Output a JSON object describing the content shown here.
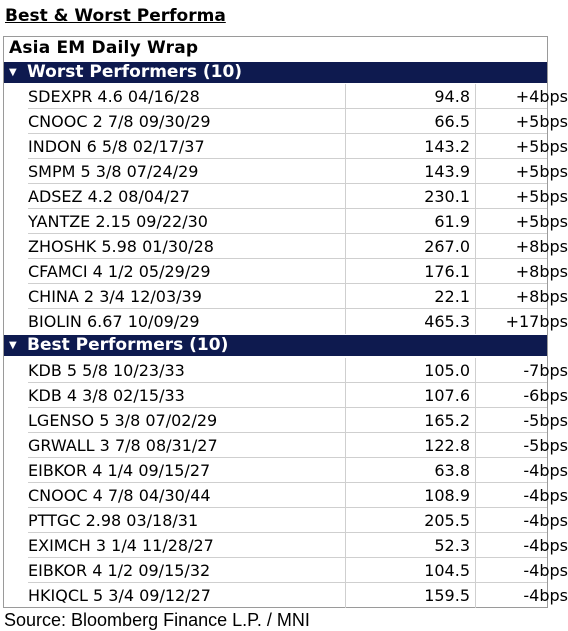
{
  "title": "Best & Worst Performa",
  "wrap_title": "Asia EM Daily Wrap",
  "worst": {
    "header": "Worst Performers (10)",
    "rows": [
      {
        "name": "SDEXPR 4.6 04/16/28",
        "price": "94.8",
        "change": "+4bps"
      },
      {
        "name": "CNOOC 2 7/8 09/30/29",
        "price": "66.5",
        "change": "+5bps"
      },
      {
        "name": "INDON 6 5/8 02/17/37",
        "price": "143.2",
        "change": "+5bps"
      },
      {
        "name": "SMPM 5 3/8 07/24/29",
        "price": "143.9",
        "change": "+5bps"
      },
      {
        "name": "ADSEZ 4.2 08/04/27",
        "price": "230.1",
        "change": "+5bps"
      },
      {
        "name": "YANTZE 2.15 09/22/30",
        "price": "61.9",
        "change": "+5bps"
      },
      {
        "name": "ZHOSHK 5.98 01/30/28",
        "price": "267.0",
        "change": "+8bps"
      },
      {
        "name": "CFAMCI 4 1/2 05/29/29",
        "price": "176.1",
        "change": "+8bps"
      },
      {
        "name": "CHINA 2 3/4 12/03/39",
        "price": "22.1",
        "change": "+8bps"
      },
      {
        "name": "BIOLIN 6.67 10/09/29",
        "price": "465.3",
        "change": "+17bps"
      }
    ]
  },
  "best": {
    "header": "Best Performers (10)",
    "rows": [
      {
        "name": "KDB 5 5/8 10/23/33",
        "price": "105.0",
        "change": "-7bps"
      },
      {
        "name": "KDB 4 3/8 02/15/33",
        "price": "107.6",
        "change": "-6bps"
      },
      {
        "name": "LGENSO 5 3/8 07/02/29",
        "price": "165.2",
        "change": "-5bps"
      },
      {
        "name": "GRWALL 3 7/8 08/31/27",
        "price": "122.8",
        "change": "-5bps"
      },
      {
        "name": "EIBKOR 4 1/4 09/15/27",
        "price": "63.8",
        "change": "-4bps"
      },
      {
        "name": "CNOOC 4 7/8 04/30/44",
        "price": "108.9",
        "change": "-4bps"
      },
      {
        "name": "PTTGC 2.98 03/18/31",
        "price": "205.5",
        "change": "-4bps"
      },
      {
        "name": "EXIMCH 3 1/4 11/28/27",
        "price": "52.3",
        "change": "-4bps"
      },
      {
        "name": "EIBKOR 4 1/2 09/15/32",
        "price": "104.5",
        "change": "-4bps"
      },
      {
        "name": "HKIQCL 5 3/4 09/12/27",
        "price": "159.5",
        "change": "-4bps"
      }
    ]
  },
  "source": "Source: Bloomberg Finance L.P. / MNI",
  "colors": {
    "section_header_bg": "#0e1a4f",
    "section_header_text": "#ffffff"
  },
  "icons": {
    "section_toggle": "caret-down-icon"
  }
}
